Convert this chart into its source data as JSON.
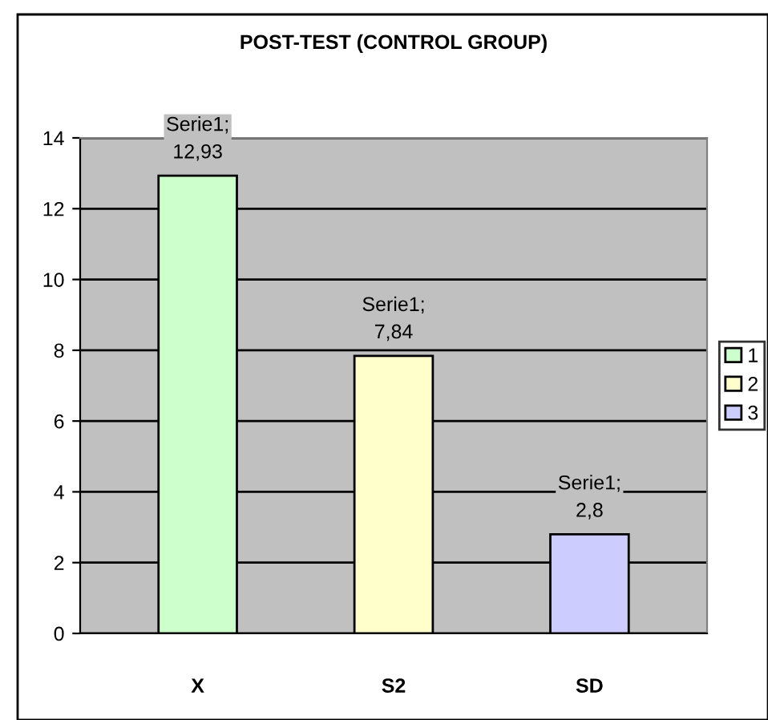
{
  "chart_data": {
    "type": "bar",
    "title": "POST-TEST (CONTROL GROUP)",
    "categories": [
      "X",
      "S2",
      "SD"
    ],
    "series": [
      {
        "name": "1",
        "color": "#ccffcc",
        "values": [
          12.93,
          null,
          null
        ],
        "value_labels": [
          "Serie1;\n12,93",
          null,
          null
        ]
      },
      {
        "name": "2",
        "color": "#ffffcc",
        "values": [
          null,
          7.84,
          null
        ],
        "value_labels": [
          null,
          "Serie1;\n7,84",
          null
        ]
      },
      {
        "name": "3",
        "color": "#ccccff",
        "values": [
          null,
          null,
          2.8
        ],
        "value_labels": [
          null,
          null,
          "Serie1;\n2,8"
        ]
      }
    ],
    "ylim": [
      0,
      14
    ],
    "yticks": [
      0,
      2,
      4,
      6,
      8,
      10,
      12,
      14
    ],
    "grid": "y",
    "legend": "right"
  }
}
